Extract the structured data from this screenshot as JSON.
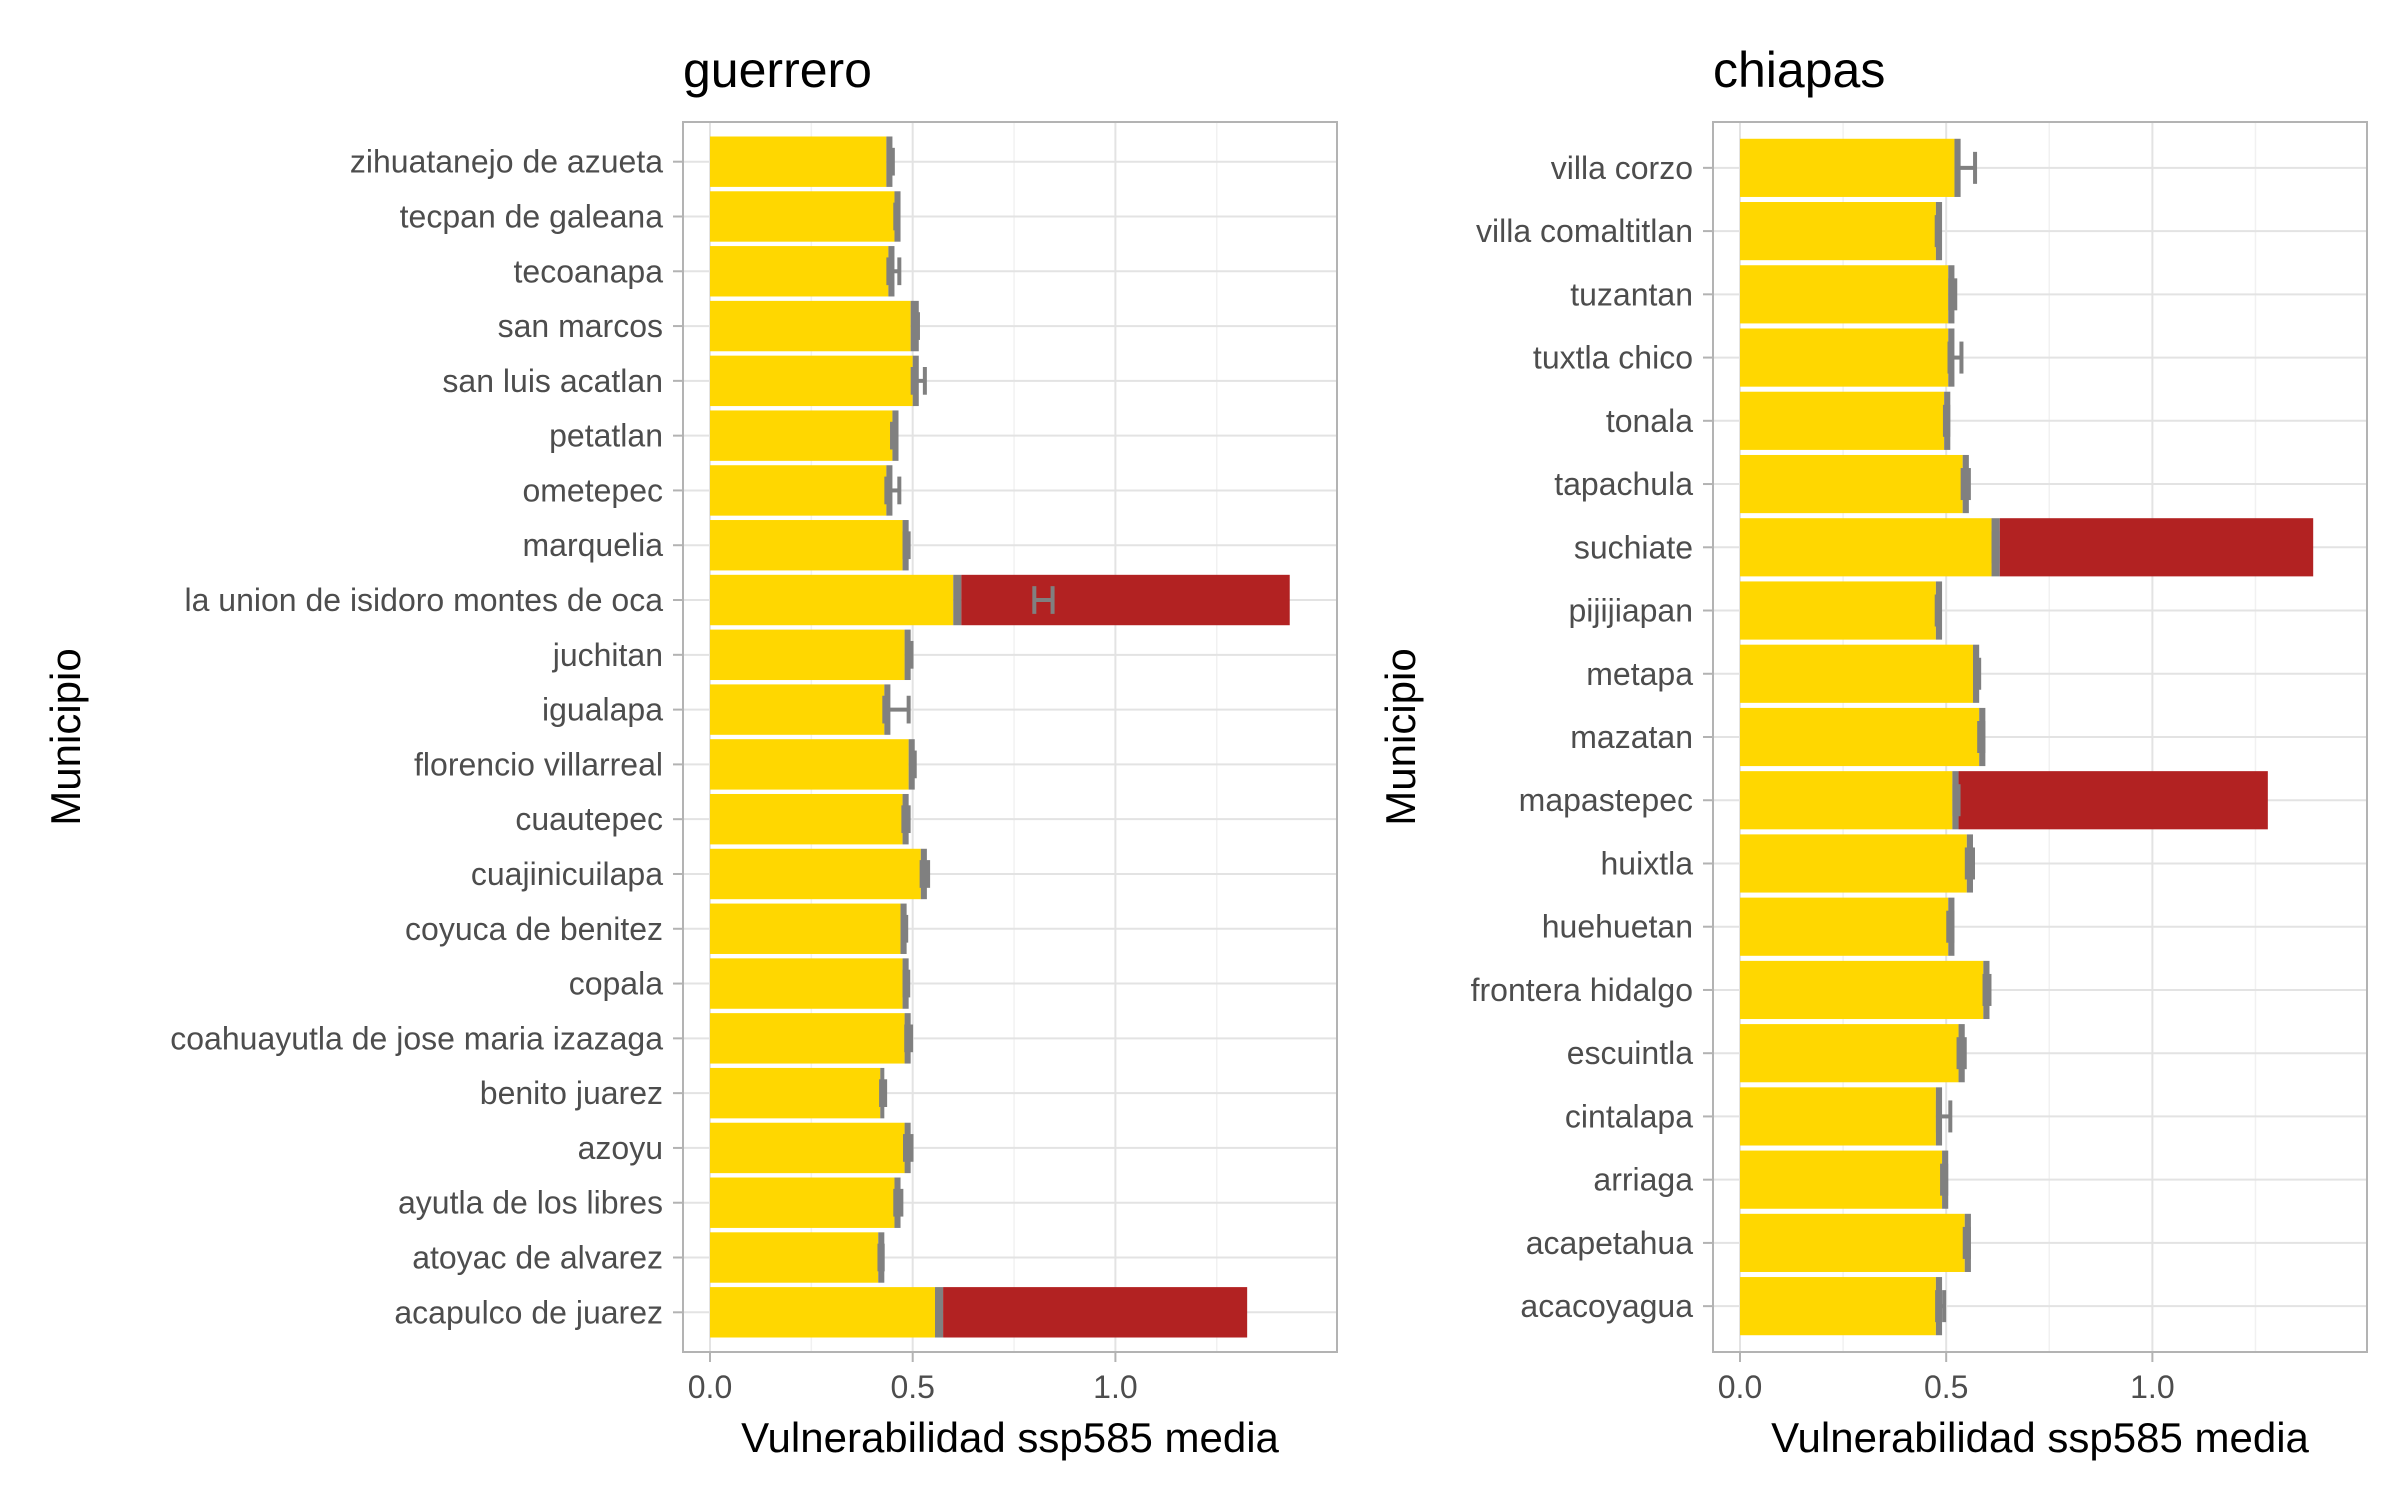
{
  "colors": {
    "fill": "#FFD700",
    "excess": "#B22222",
    "error": "#808080"
  },
  "chart_data": [
    {
      "type": "bar",
      "orientation": "horizontal",
      "stacked": true,
      "title": "guerrero",
      "xlabel": "Vulnerabilidad ssp585 media",
      "ylabel": "Municipio",
      "xlim": [
        0,
        1.48
      ],
      "xticks": [
        0.0,
        0.5,
        1.0
      ],
      "xtick_labels": [
        "0.0",
        "0.5",
        "1.0"
      ],
      "grid": true,
      "categories": [
        "zihuatanejo de azueta",
        "tecpan de galeana",
        "tecoanapa",
        "san marcos",
        "san luis acatlan",
        "petatlan",
        "ometepec",
        "marquelia",
        "la union de isidoro montes de oca",
        "juchitan",
        "igualapa",
        "florencio villarreal",
        "cuautepec",
        "cuajinicuilapa",
        "coyuca de benitez",
        "copala",
        "coahuayutla de jose maria izazaga",
        "benito juarez",
        "azoyu",
        "ayutla de los libres",
        "atoyac de alvarez",
        "acapulco de juarez"
      ],
      "series": [
        {
          "values": [
            0.435,
            0.455,
            0.44,
            0.495,
            0.5,
            0.45,
            0.435,
            0.475,
            0.6,
            0.48,
            0.43,
            0.49,
            0.475,
            0.52,
            0.47,
            0.475,
            0.48,
            0.42,
            0.48,
            0.455,
            0.415,
            0.555
          ]
        },
        {
          "values": [
            0.015,
            0.015,
            0.015,
            0.02,
            0.015,
            0.015,
            0.015,
            0.015,
            0.02,
            0.015,
            0.015,
            0.015,
            0.015,
            0.015,
            0.015,
            0.015,
            0.015,
            0.01,
            0.015,
            0.015,
            0.015,
            0.02
          ]
        },
        {
          "values": [
            0,
            0,
            0,
            0,
            0,
            0,
            0,
            0,
            0.81,
            0,
            0,
            0,
            0,
            0,
            0,
            0,
            0,
            0,
            0,
            0,
            0,
            0.75
          ]
        }
      ],
      "error_bars": [
        [
          0.443,
          0.451
        ],
        [
          0.457,
          0.463
        ],
        [
          0.44,
          0.467
        ],
        [
          0.507,
          0.513
        ],
        [
          0.5,
          0.53
        ],
        [
          0.449,
          0.457
        ],
        [
          0.435,
          0.467
        ],
        [
          0.48,
          0.49
        ],
        [
          0.8,
          0.845
        ],
        [
          0.487,
          0.497
        ],
        [
          0.43,
          0.49
        ],
        [
          0.497,
          0.505
        ],
        [
          0.477,
          0.49
        ],
        [
          0.522,
          0.538
        ],
        [
          0.476,
          0.484
        ],
        [
          0.48,
          0.489
        ],
        [
          0.484,
          0.496
        ],
        [
          0.422,
          0.432
        ],
        [
          0.481,
          0.497
        ],
        [
          0.457,
          0.472
        ],
        [
          0.418,
          0.426
        ],
        [
          0.56,
          0.566
        ]
      ]
    },
    {
      "type": "bar",
      "orientation": "horizontal",
      "stacked": true,
      "title": "chiapas",
      "xlabel": "Vulnerabilidad ssp585 media",
      "ylabel": "Municipio",
      "xlim": [
        0,
        1.455
      ],
      "xticks": [
        0.0,
        0.5,
        1.0
      ],
      "xtick_labels": [
        "0.0",
        "0.5",
        "1.0"
      ],
      "grid": true,
      "categories": [
        "villa corzo",
        "villa comaltitlan",
        "tuzantan",
        "tuxtla chico",
        "tonala",
        "tapachula",
        "suchiate",
        "pijijiapan",
        "metapa",
        "mazatan",
        "mapastepec",
        "huixtla",
        "huehuetan",
        "frontera hidalgo",
        "escuintla",
        "cintalapa",
        "arriaga",
        "acapetahua",
        "acacoyagua"
      ],
      "series": [
        {
          "values": [
            0.52,
            0.475,
            0.505,
            0.505,
            0.495,
            0.54,
            0.61,
            0.475,
            0.565,
            0.58,
            0.515,
            0.55,
            0.505,
            0.59,
            0.53,
            0.475,
            0.49,
            0.545,
            0.475
          ]
        },
        {
          "values": [
            0.015,
            0.015,
            0.015,
            0.015,
            0.015,
            0.015,
            0.02,
            0.015,
            0.015,
            0.015,
            0.015,
            0.015,
            0.015,
            0.015,
            0.015,
            0.015,
            0.015,
            0.015,
            0.015
          ]
        },
        {
          "values": [
            0,
            0,
            0,
            0,
            0,
            0,
            0.76,
            0,
            0,
            0,
            0.75,
            0,
            0,
            0,
            0,
            0,
            0,
            0,
            0
          ]
        }
      ],
      "error_bars": [
        [
          0.525,
          0.57
        ],
        [
          0.477,
          0.485
        ],
        [
          0.51,
          0.522
        ],
        [
          0.508,
          0.537
        ],
        [
          0.497,
          0.505
        ],
        [
          0.54,
          0.555
        ],
        [
          0.615,
          0.625
        ],
        [
          0.477,
          0.485
        ],
        [
          0.57,
          0.58
        ],
        [
          0.58,
          0.59
        ],
        [
          0.52,
          0.53
        ],
        [
          0.55,
          0.565
        ],
        [
          0.505,
          0.515
        ],
        [
          0.593,
          0.605
        ],
        [
          0.53,
          0.545
        ],
        [
          0.48,
          0.51
        ],
        [
          0.49,
          0.5
        ],
        [
          0.545,
          0.555
        ],
        [
          0.478,
          0.495
        ]
      ]
    }
  ]
}
